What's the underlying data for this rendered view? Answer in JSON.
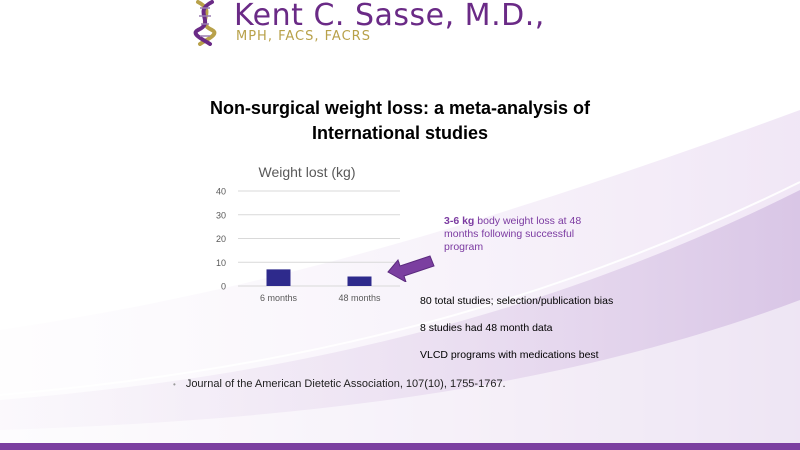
{
  "logo": {
    "name": "Kent C. Sasse, M.D.,",
    "credentials": "MPH, FACS, FACRS",
    "icon": "dna-helix-icon"
  },
  "slide": {
    "title_line1": "Non-surgical weight loss: a meta-analysis of",
    "title_line2": "International  studies"
  },
  "callout": {
    "bold": "3-6 kg",
    "text": " body weight loss at 48 months following successful program",
    "arrow_icon": "arrow-left-icon"
  },
  "bullets": [
    "80 total studies; selection/publication  bias",
    "8 studies had 48 month data",
    "VLCD programs with medications best"
  ],
  "citation": {
    "bullet": "•",
    "text": "Journal of the American Dietetic Association, 107(10), 1755-1767."
  },
  "colors": {
    "brand_purple": "#6a2a86",
    "brand_gold": "#b8a14a",
    "bar": "#2e2a8c",
    "callout": "#7b3aa1"
  },
  "chart_data": {
    "type": "bar",
    "title": "Weight lost (kg)",
    "categories": [
      "6 months",
      "48 months"
    ],
    "values": [
      7,
      4
    ],
    "ylim": [
      0,
      40
    ],
    "yticks": [
      0,
      10,
      20,
      30,
      40
    ],
    "grid": true,
    "legend": "none"
  }
}
